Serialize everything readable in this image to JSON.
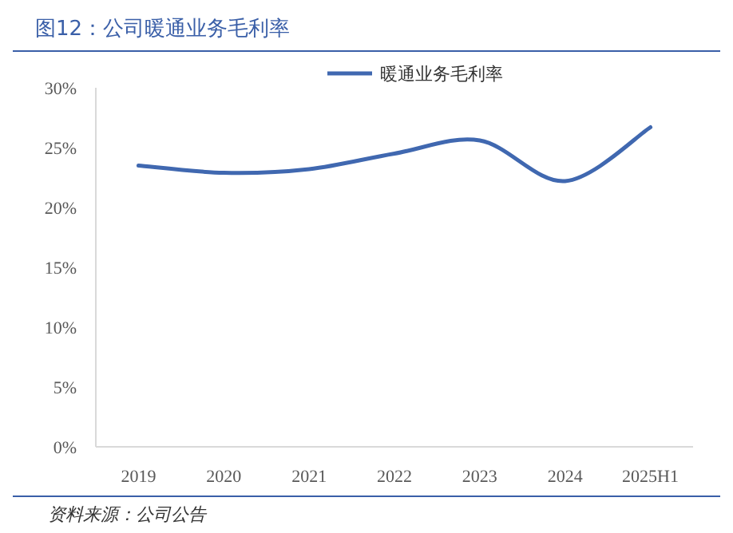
{
  "chart_data": {
    "type": "line",
    "title": "图12：公司暖通业务毛利率",
    "categories": [
      "2019",
      "2020",
      "2021",
      "2022",
      "2023",
      "2024",
      "2025H1"
    ],
    "series": [
      {
        "name": "暖通业务毛利率",
        "color": "#4068b0",
        "values": [
          23.5,
          22.9,
          23.2,
          24.5,
          25.6,
          22.2,
          26.7
        ]
      }
    ],
    "ylim": [
      0,
      30
    ],
    "yticks": [
      {
        "value": 0,
        "label": "0%"
      },
      {
        "value": 5,
        "label": "5%"
      },
      {
        "value": 10,
        "label": "10%"
      },
      {
        "value": 15,
        "label": "15%"
      },
      {
        "value": 20,
        "label": "20%"
      },
      {
        "value": 25,
        "label": "25%"
      },
      {
        "value": 30,
        "label": "30%"
      }
    ],
    "grid": false,
    "legend": "top",
    "marker": "none",
    "line_style": "solid",
    "annotations": [
      "资料来源：公司公告"
    ]
  }
}
